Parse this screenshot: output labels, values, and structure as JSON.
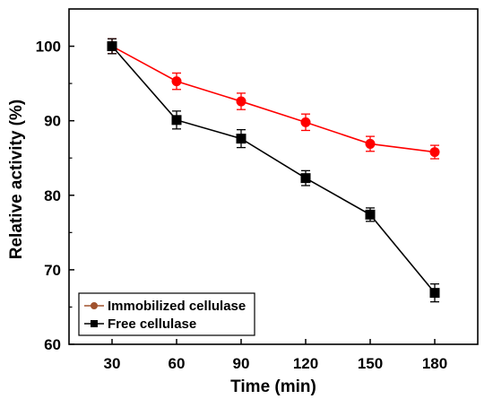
{
  "chart_data": {
    "type": "line",
    "xlabel": "Time (min)",
    "ylabel": "Relative activity (%)",
    "x": [
      30,
      60,
      90,
      120,
      150,
      180
    ],
    "xlim": [
      10,
      200
    ],
    "ylim": [
      60,
      105
    ],
    "xticks": [
      30,
      60,
      90,
      120,
      150,
      180
    ],
    "yticks": [
      60,
      70,
      80,
      90,
      100
    ],
    "grid": false,
    "legend_position": "bottom-left",
    "series": [
      {
        "name": "Immobilized cellulase",
        "color": "#ff0000",
        "legend_marker_color": "#a0522d",
        "marker": "circle",
        "values": [
          100.0,
          95.3,
          92.6,
          89.8,
          86.9,
          85.8
        ],
        "errors": [
          1.0,
          1.1,
          1.1,
          1.1,
          1.0,
          0.9
        ]
      },
      {
        "name": "Free cellulase",
        "color": "#000000",
        "legend_marker_color": "#000000",
        "marker": "square",
        "values": [
          100.0,
          90.1,
          87.6,
          82.3,
          77.4,
          66.9
        ],
        "errors": [
          1.0,
          1.2,
          1.2,
          1.0,
          0.9,
          1.2
        ]
      }
    ]
  }
}
